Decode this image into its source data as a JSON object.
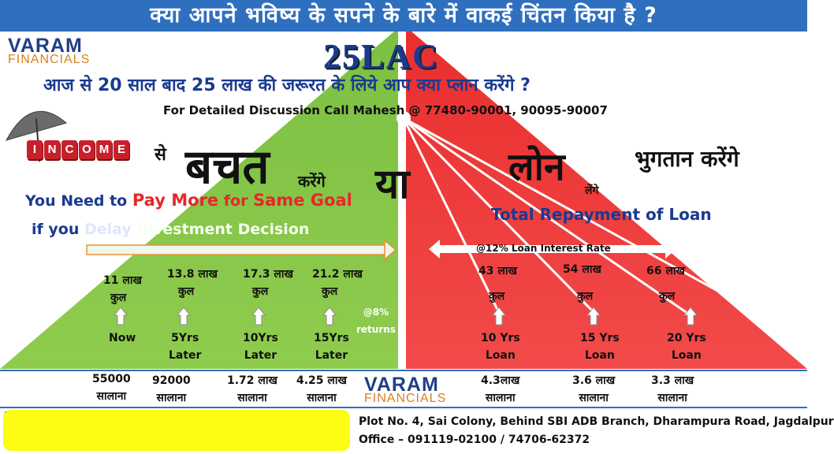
{
  "top_banner": {
    "title": "क्या आपने भविष्य के सपने के बारे में वाकई चिंतन किया है ?"
  },
  "logo": {
    "line1": "VARAM",
    "line2": "FINANCIALS"
  },
  "headline": {
    "amount": "25LAC",
    "question": "आज से 20 साल बाद 25 लाख की जरूरत के लिये आप क्या प्लान करेंगे  ?",
    "contact": "For Detailed Discussion Call Mahesh @ 77480-90001, 90095-90007"
  },
  "left": {
    "income_letters": [
      "I",
      "N",
      "C",
      "O",
      "M",
      "E"
    ],
    "se": "से",
    "bachat": "बचत",
    "karenge": "करेंगे",
    "pay_more": {
      "p1": "You Need to ",
      "p2": "Pay More",
      "p3": " for ",
      "p4": "Same Goal"
    },
    "delay": {
      "p1": "if you  ",
      "p2": "Delay",
      "p3": " Investment Decision"
    },
    "items": [
      {
        "amount": "11 लाख",
        "kul": "कुल",
        "time1": "Now",
        "time2": "",
        "bottom_amount": "55000",
        "bottom_label": "सालाना"
      },
      {
        "amount": "13.8 लाख",
        "kul": "कुल",
        "time1": "5Yrs",
        "time2": "Later",
        "bottom_amount": "92000",
        "bottom_label": "सालाना"
      },
      {
        "amount": "17.3 लाख",
        "kul": "कुल",
        "time1": "10Yrs",
        "time2": "Later",
        "bottom_amount": "1.72 लाख",
        "bottom_label": "सालाना"
      },
      {
        "amount": "21.2 लाख",
        "kul": "कुल",
        "time1": "15Yrs",
        "time2": "Later",
        "bottom_amount": "4.25 लाख",
        "bottom_label": "सालाना"
      }
    ],
    "returns1": "@8%",
    "returns2": "returns"
  },
  "center": {
    "ya": "या"
  },
  "right": {
    "loan": "लोन",
    "lenge": "लेंगे",
    "bhugtan": "भुगतान करेंगे",
    "total_repay": "Total Repayment of Loan",
    "rate": "@12% Loan Interest Rate",
    "items": [
      {
        "amount": "43 लाख",
        "kul": "कुल",
        "time1": "10 Yrs",
        "time2": "Loan",
        "bottom_amount": "4.3लाख",
        "bottom_label": "सालाना"
      },
      {
        "amount": "54 लाख",
        "kul": "कुल",
        "time1": "15 Yrs",
        "time2": "Loan",
        "bottom_amount": "3.6 लाख",
        "bottom_label": "सालाना"
      },
      {
        "amount": "66 लाख",
        "kul": "कुल",
        "time1": "20 Yrs",
        "time2": "Loan",
        "bottom_amount": "3.3 लाख",
        "bottom_label": "सालाना"
      }
    ]
  },
  "footer": {
    "address1": "Plot No. 4, Sai Colony, Behind SBI ADB Branch, Dharampura Road, Jagdalpur",
    "address2": "Office – 091119-02100 / 74706-62372"
  },
  "colors": {
    "banner": "#2f6fc0",
    "green": "#8bc34a",
    "red": "#ef3b3b",
    "navy": "#1a3a90",
    "yellow": "#fcfc14"
  }
}
